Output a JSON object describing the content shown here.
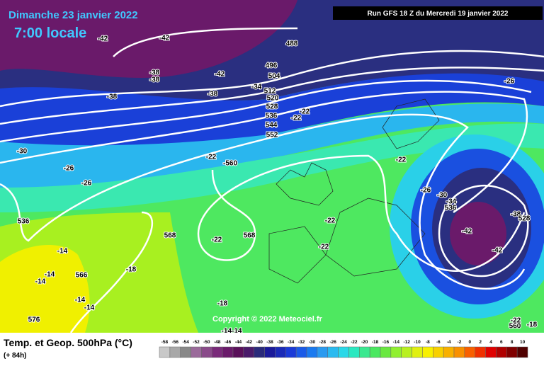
{
  "header": {
    "title": "Dimanche 23 janvier 2022",
    "subtitle": "7:00 locale",
    "run": "Run GFS 18 Z du Mercredi 19 janvier 2022"
  },
  "contour_labels": [
    "-42",
    "-42",
    "-38",
    "-38",
    "-42",
    "-38",
    "-38",
    "488",
    "496",
    "504",
    "-34",
    "512",
    "520",
    "528",
    "536",
    "544",
    "552",
    "-22",
    "-22",
    "-26",
    "-30",
    "-26",
    "-26",
    "-22",
    "-560",
    "-22",
    "-26",
    "-30",
    "-34",
    "536",
    "-38",
    "528",
    "536",
    "568",
    "568",
    "-22",
    "-22",
    "-22",
    "-42",
    "-42",
    "-14",
    "-14",
    "-14",
    "566",
    "-18",
    "-14",
    "-14",
    "576",
    "-18",
    "-14-14",
    "-22",
    "560",
    "-18"
  ],
  "copyright": "Copyright © 2022 Meteociel.fr",
  "footer": {
    "title": "Temp. et Geop. 500hPa (°C)",
    "lead": "(+ 84h)"
  },
  "legend": {
    "ticks": [
      -58,
      -56,
      -54,
      -52,
      -50,
      -48,
      -46,
      -44,
      -42,
      -40,
      -38,
      -36,
      -34,
      -32,
      -30,
      -28,
      -26,
      -24,
      -22,
      -20,
      -18,
      -16,
      -14,
      -12,
      -10,
      -8,
      -6,
      -4,
      -2,
      0,
      2,
      4,
      6,
      8,
      10
    ],
    "colors": [
      "#c8c8c8",
      "#a8a8a8",
      "#888888",
      "#9a6a9a",
      "#8a4a8a",
      "#7a2a7a",
      "#6a1a6a",
      "#5a105a",
      "#4a1a6a",
      "#2a2a7a",
      "#1a1a9a",
      "#1a2ab8",
      "#1a3ad8",
      "#1a5ae8",
      "#1a7af0",
      "#2a9af0",
      "#2abaf0",
      "#2ad8e8",
      "#2ae8c0",
      "#3ae890",
      "#4ae860",
      "#6ae840",
      "#90f030",
      "#b8f020",
      "#e0f010",
      "#f8f000",
      "#f8d000",
      "#f8b000",
      "#f89000",
      "#f86000",
      "#f03000",
      "#e00000",
      "#b00000",
      "#800000",
      "#500000"
    ]
  }
}
